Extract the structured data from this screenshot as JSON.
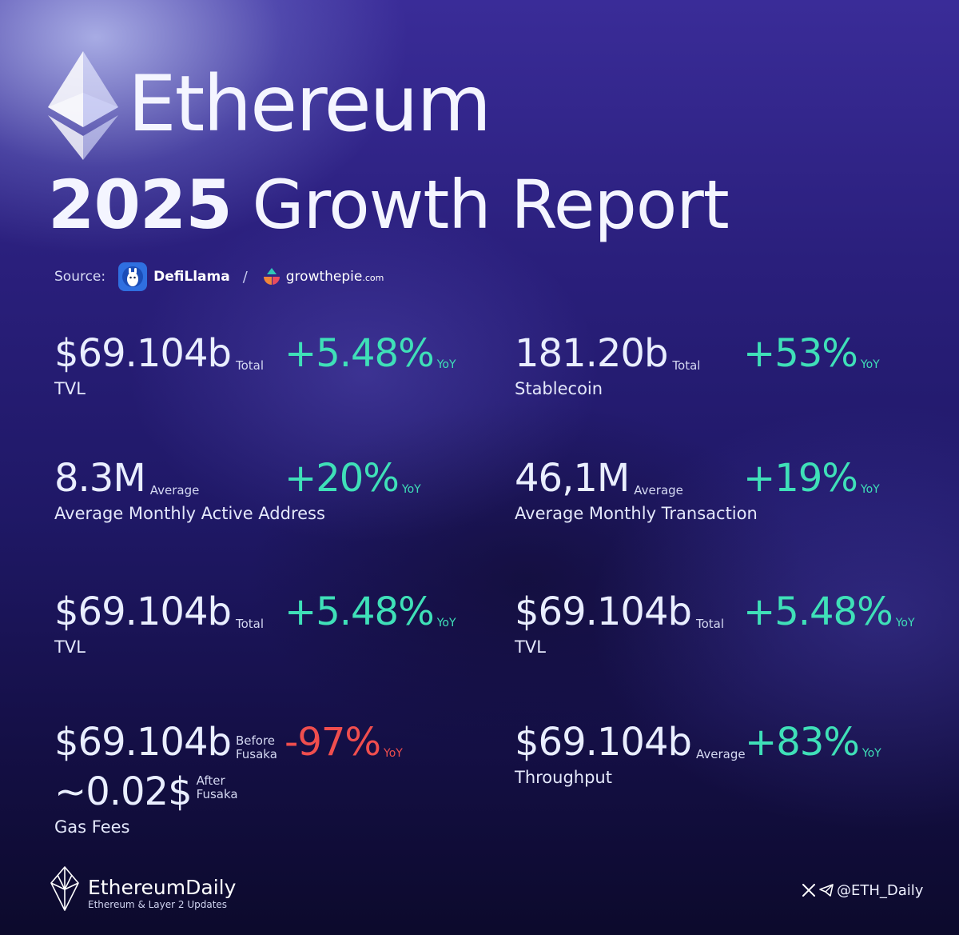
{
  "header": {
    "title": "Ethereum",
    "year": "2025",
    "subtitle": "Growth Report"
  },
  "source": {
    "label": "Source:",
    "provider1": "DefiLlama",
    "separator": "/",
    "provider2_main": "growthepie",
    "provider2_tld": ".com"
  },
  "metrics": [
    {
      "value": "$69.104b",
      "suffix": "Total",
      "label": "TVL",
      "change": "+5.48%",
      "yoy": "YoY"
    },
    {
      "value": "181.20b",
      "suffix": "Total",
      "label": "Stablecoin",
      "change": "+53%",
      "yoy": "YoY"
    },
    {
      "value": "8.3M",
      "suffix": "Average",
      "label": "Average Monthly Active Address",
      "change": "+20%",
      "yoy": "YoY"
    },
    {
      "value": "46,1M",
      "suffix": "Average",
      "label": "Average Monthly Transaction",
      "change": "+19%",
      "yoy": "YoY"
    },
    {
      "value": "$69.104b",
      "suffix": "Total",
      "label": "TVL",
      "change": "+5.48%",
      "yoy": "YoY"
    },
    {
      "value": "$69.104b",
      "suffix": "Total",
      "label": "TVL",
      "change": "+5.48%",
      "yoy": "YoY"
    },
    {
      "value": "$69.104b",
      "suffix_line1": "Before",
      "suffix_line2": "Fusaka",
      "value2": "~0.02$",
      "suffix2_line1": "After",
      "suffix2_line2": "Fusaka",
      "label": "Gas Fees",
      "change": "-97%",
      "yoy": "YoY"
    },
    {
      "value": "$69.104b",
      "suffix": "Average",
      "label": "Throughput",
      "change": "+83%",
      "yoy": "YoY"
    }
  ],
  "colors": {
    "positive": "#3fe0b8",
    "negative": "#f04e4e",
    "background_top": "#3a2c98",
    "background_bottom": "#0c0a2c"
  },
  "footer": {
    "brand": "EthereumDaily",
    "tagline": "Ethereum & Layer 2 Updates",
    "handle": "@ETH_Daily",
    "icons": [
      "x-icon",
      "telegram-icon"
    ]
  }
}
